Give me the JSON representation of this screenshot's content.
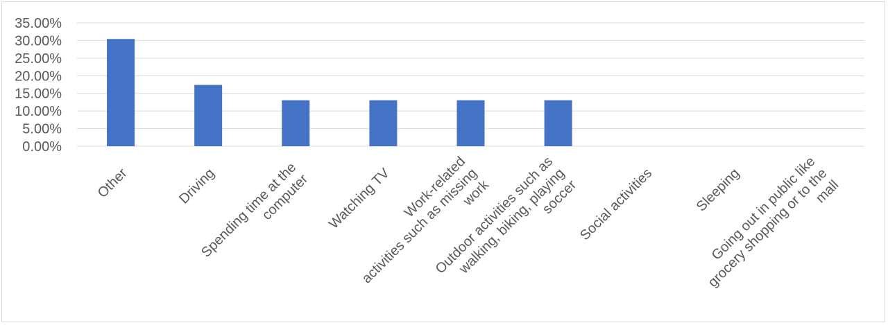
{
  "chart_data": {
    "type": "bar",
    "title": "",
    "xlabel": "",
    "ylabel": "",
    "categories": [
      [
        "Other"
      ],
      [
        "Driving"
      ],
      [
        "Spending time at the",
        "computer"
      ],
      [
        "Watching TV"
      ],
      [
        "Work-related",
        "activities such as missing",
        "work"
      ],
      [
        "Outdoor activities such as",
        "walking, biking, playing",
        "soccer"
      ],
      [
        "Social activities"
      ],
      [
        "Sleeping"
      ],
      [
        "Going out in public like",
        "grocery shopping or to the",
        "mall"
      ]
    ],
    "values": [
      0.3043,
      0.1739,
      0.1304,
      0.1304,
      0.1304,
      0.1304,
      0,
      0,
      0
    ],
    "ylim": [
      0,
      0.35
    ],
    "yticks": [
      "0.00%",
      "5.00%",
      "10.00%",
      "15.00%",
      "20.00%",
      "25.00%",
      "30.00%",
      "35.00%"
    ],
    "grid": true,
    "legend": "none",
    "colors": {
      "bar": "#4472c4",
      "grid": "#d9d9d9",
      "text": "#595959"
    }
  }
}
